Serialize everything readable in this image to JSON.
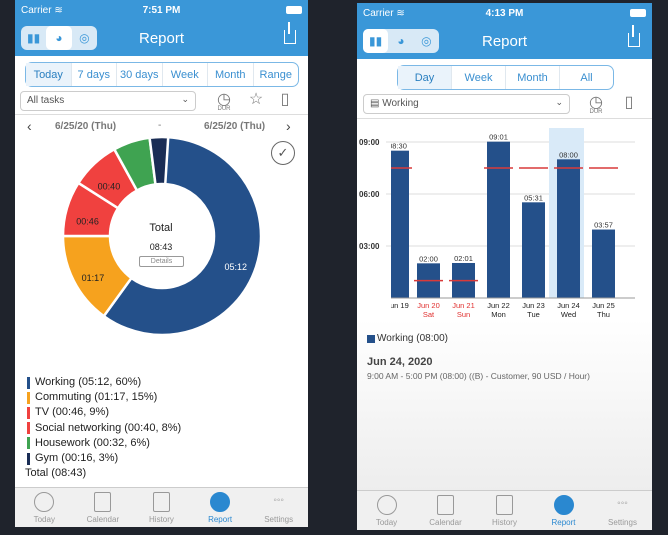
{
  "left": {
    "status": {
      "carrier": "Carrier",
      "time": "7:51 PM"
    },
    "header": {
      "title": "Report"
    },
    "periods": [
      "Today",
      "7 days",
      "30 days",
      "Week",
      "Month",
      "Range"
    ],
    "active_period": "Today",
    "filter": {
      "value": "All tasks"
    },
    "dur_label": "DUR",
    "date_range": {
      "start": "6/25/20 (Thu)",
      "sep": "-",
      "end": "6/25/20 (Thu)"
    },
    "center": {
      "label": "Total",
      "value": "08:43",
      "details": "Details"
    },
    "chart_data": {
      "type": "pie",
      "donut": true,
      "slices": [
        {
          "name": "Working",
          "duration": "05:12",
          "percent": 60,
          "color": "#24508a",
          "label": "05:12"
        },
        {
          "name": "Commuting",
          "duration": "01:17",
          "percent": 15,
          "color": "#f6a21e",
          "label": "01:17"
        },
        {
          "name": "TV",
          "duration": "00:46",
          "percent": 9,
          "color": "#f0413f",
          "label": "00:46"
        },
        {
          "name": "Social networking",
          "duration": "00:40",
          "percent": 8,
          "color": "#f0413f",
          "label": "00:40"
        },
        {
          "name": "Housework",
          "duration": "00:32",
          "percent": 6,
          "color": "#3fa351",
          "label": ""
        },
        {
          "name": "Gym",
          "duration": "00:16",
          "percent": 3,
          "color": "#1a2d55",
          "label": ""
        }
      ]
    },
    "legend": [
      "Working (05:12, 60%)",
      "Commuting (01:17, 15%)",
      "TV (00:46, 9%)",
      "Social networking (00:40, 8%)",
      "Housework (00:32, 6%)",
      "Gym (00:16, 3%)"
    ],
    "total": "Total (08:43)"
  },
  "right": {
    "status": {
      "carrier": "Carrier",
      "time": "4:13 PM"
    },
    "header": {
      "title": "Report"
    },
    "periods": [
      "Day",
      "Week",
      "Month",
      "All"
    ],
    "active_period": "Day",
    "filter": {
      "value": "Working"
    },
    "dur_label": "DUR",
    "chart_data": {
      "type": "bar",
      "yticks": [
        "03:00",
        "06:00",
        "09:00"
      ],
      "ylim": [
        0,
        10
      ],
      "categories": [
        [
          "Jun 19",
          ""
        ],
        [
          "Jun 20",
          "Sat"
        ],
        [
          "Jun 21",
          "Sun"
        ],
        [
          "Jun 22",
          "Mon"
        ],
        [
          "Jun 23",
          "Tue"
        ],
        [
          "Jun 24",
          "Wed"
        ],
        [
          "Jun 25",
          "Thu"
        ]
      ],
      "weekend": [
        false,
        true,
        true,
        false,
        false,
        false,
        false
      ],
      "values": [
        8.5,
        2.0,
        2.02,
        9.02,
        5.52,
        8.0,
        3.95
      ],
      "labels": [
        "08:30",
        "02:00",
        "02:01",
        "09:01",
        "05:31",
        "08:00",
        "03:57"
      ],
      "targets": [
        7.5,
        1,
        1,
        7.5,
        7.5,
        7.5,
        7.5
      ],
      "highlighted": "Jun 24",
      "bar_color": "#24508a",
      "target_color": "#d93a3a"
    },
    "legend": "Working (08:00)",
    "detail": {
      "date": "Jun 24, 2020",
      "text": "9:00 AM - 5:00 PM (08:00) ((B) - Customer, 90 USD / Hour)"
    }
  },
  "tabs": [
    "Today",
    "Calendar",
    "History",
    "Report",
    "Settings"
  ],
  "active_tab": "Report"
}
